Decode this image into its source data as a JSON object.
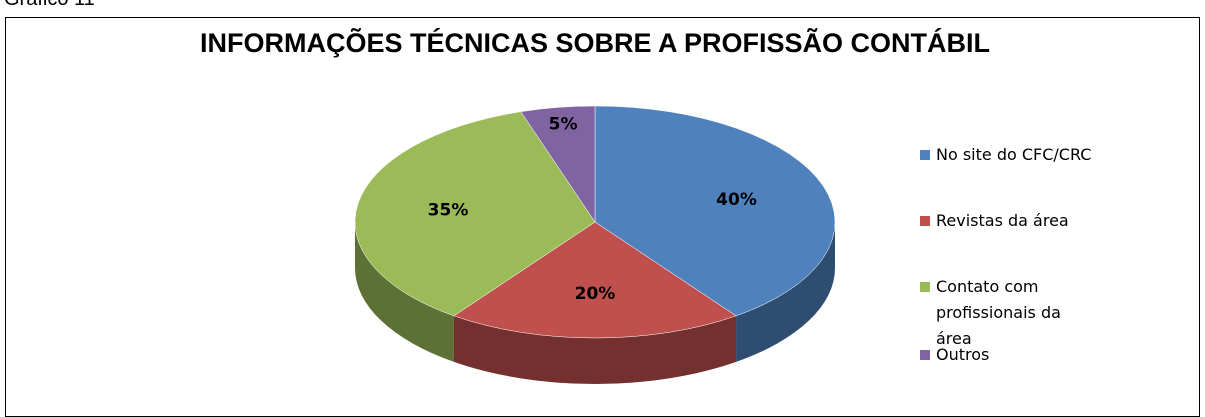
{
  "caption": "Gráfico 11",
  "chart_data": {
    "type": "pie",
    "title": "INFORMAÇÕES TÉCNICAS SOBRE A PROFISSÃO CONTÁBIL",
    "categories": [
      "No site do CFC/CRC",
      "Revistas da área",
      "Contato com profissionais da área",
      "Outros"
    ],
    "values": [
      40,
      20,
      35,
      5
    ],
    "value_labels": [
      "40%",
      "20%",
      "35%",
      "5%"
    ],
    "colors": [
      "#4f81bd",
      "#c0504d",
      "#9bbb59",
      "#8064a2"
    ],
    "legend": "right"
  }
}
